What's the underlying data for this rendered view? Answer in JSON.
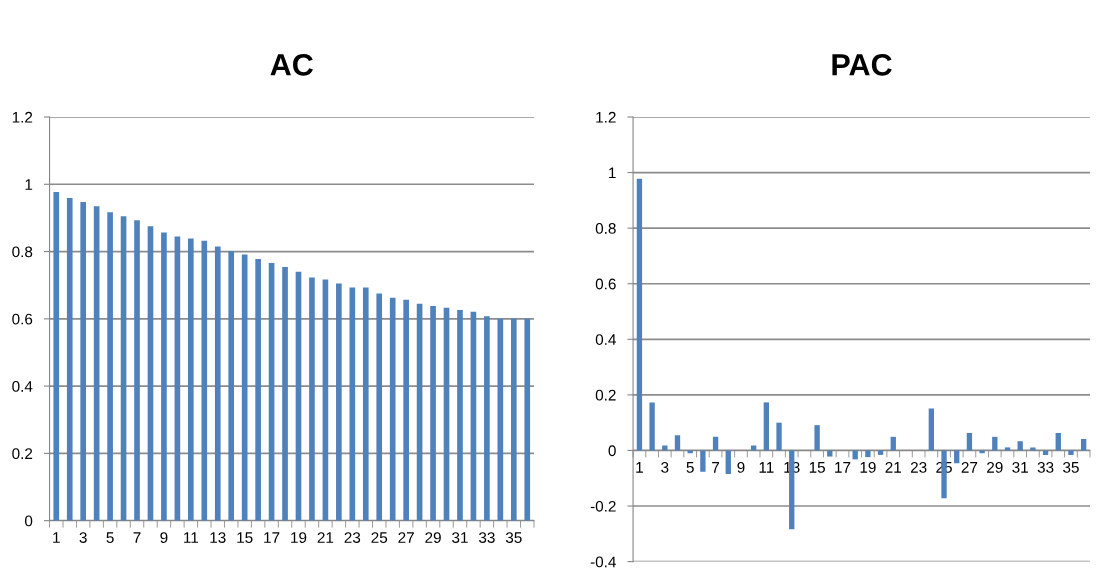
{
  "chart_data": [
    {
      "type": "bar",
      "title": "AC",
      "categories": [
        "1",
        null,
        "3",
        null,
        "5",
        null,
        "7",
        null,
        "9",
        null,
        "11",
        null,
        "13",
        null,
        "15",
        null,
        "17",
        null,
        "19",
        null,
        "21",
        null,
        "23",
        null,
        "25",
        null,
        "27",
        null,
        "29",
        null,
        "31",
        null,
        "33",
        null,
        "35",
        null
      ],
      "series": [
        {
          "color": "#4f81bd",
          "values": [
            0.977,
            0.959,
            0.947,
            0.935,
            0.917,
            0.905,
            0.893,
            0.875,
            0.857,
            0.845,
            0.839,
            0.832,
            0.815,
            0.802,
            0.791,
            0.778,
            0.766,
            0.754,
            0.74,
            0.723,
            0.717,
            0.705,
            0.693,
            0.693,
            0.675,
            0.663,
            0.657,
            0.645,
            0.638,
            0.633,
            0.626,
            0.621,
            0.608,
            0.6,
            0.6,
            0.6
          ]
        }
      ],
      "ylim": [
        0,
        1.2
      ],
      "yticks": [
        0,
        0.2,
        0.4,
        0.6,
        0.8,
        1,
        1.2
      ],
      "grid": "y"
    },
    {
      "type": "bar",
      "title": "PAC",
      "categories": [
        "1",
        null,
        "3",
        null,
        "5",
        null,
        "7",
        null,
        "9",
        null,
        "11",
        null,
        "13",
        null,
        "15",
        null,
        "17",
        null,
        "19",
        null,
        "21",
        null,
        "23",
        null,
        "25",
        null,
        "27",
        null,
        "29",
        null,
        "31",
        null,
        "33",
        null,
        "35",
        null
      ],
      "series": [
        {
          "color": "#4f81bd",
          "values": [
            0.978,
            0.173,
            0.018,
            0.055,
            -0.01,
            -0.077,
            0.049,
            -0.085,
            0,
            0.018,
            0.173,
            0.1,
            -0.284,
            0,
            0.091,
            -0.022,
            0,
            -0.032,
            -0.024,
            -0.016,
            0.049,
            0,
            0,
            0.151,
            -0.172,
            -0.046,
            0.063,
            -0.01,
            0.049,
            0.011,
            0.033,
            0.011,
            -0.016,
            0.063,
            -0.016,
            0.041
          ]
        }
      ],
      "ylim": [
        -0.4,
        1.2
      ],
      "yticks": [
        -0.4,
        -0.2,
        0,
        0.2,
        0.4,
        0.6,
        0.8,
        1,
        1.2
      ],
      "grid": "y"
    }
  ]
}
